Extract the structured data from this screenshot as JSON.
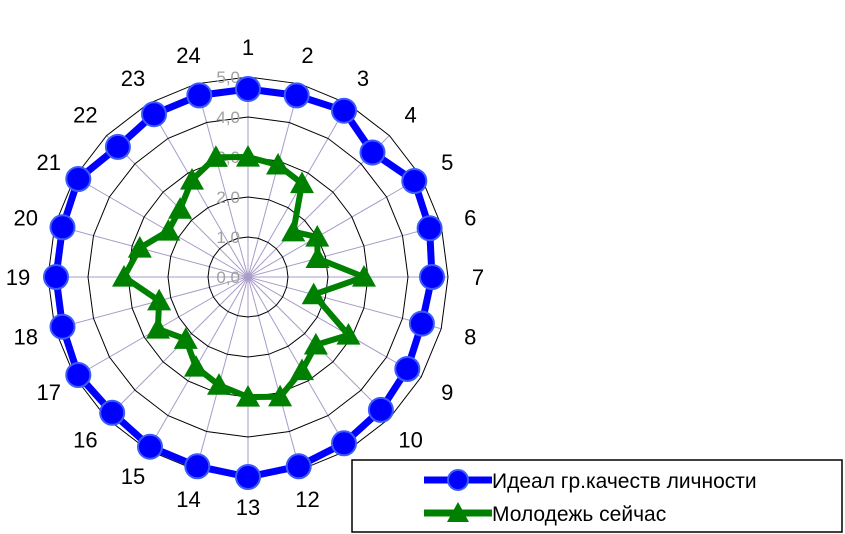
{
  "chart_data": {
    "type": "radar",
    "categories": [
      "1",
      "2",
      "3",
      "4",
      "5",
      "6",
      "7",
      "8",
      "9",
      "10",
      "11",
      "12",
      "13",
      "14",
      "15",
      "16",
      "17",
      "18",
      "19",
      "20",
      "21",
      "22",
      "23",
      "24"
    ],
    "r_ticks": [
      "0,0",
      "1,0",
      "2,0",
      "3,0",
      "4,0",
      "5,0"
    ],
    "rlim": [
      0,
      5
    ],
    "grid": true,
    "legend_position": "bottom-right",
    "series": [
      {
        "name": "Идеал гр.качеств личности",
        "color": "#0000ff",
        "marker": "circle",
        "values": [
          4.7,
          4.7,
          4.8,
          4.4,
          4.8,
          4.7,
          4.6,
          4.5,
          4.6,
          4.7,
          4.8,
          4.9,
          5.0,
          4.9,
          4.9,
          4.8,
          4.9,
          4.8,
          4.8,
          4.8,
          4.9,
          4.6,
          4.7,
          4.7
        ]
      },
      {
        "name": "Молодежь сейчас",
        "color": "#008000",
        "marker": "triangle",
        "values": [
          3.0,
          2.9,
          2.7,
          1.6,
          2.0,
          1.8,
          2.9,
          1.7,
          2.9,
          2.4,
          2.7,
          3.1,
          3.0,
          2.8,
          2.6,
          2.2,
          2.6,
          2.3,
          3.1,
          2.8,
          2.3,
          2.4,
          2.8,
          3.1
        ]
      }
    ]
  }
}
